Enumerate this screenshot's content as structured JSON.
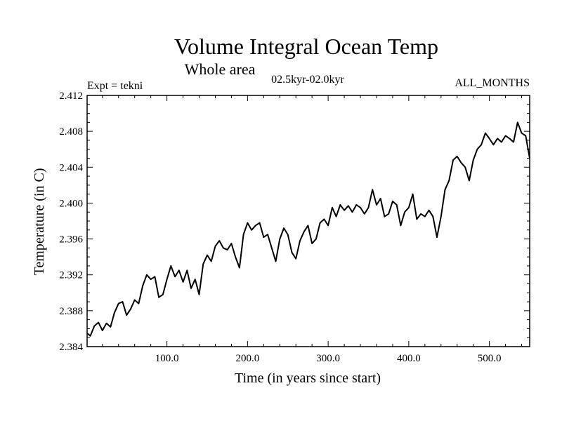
{
  "chart_data": {
    "type": "line",
    "title": "Volume Integral Ocean Temp",
    "subtitle": "Whole area",
    "period_label": "02.5kyr-02.0kyr",
    "experiment_label": "Expt = tekni",
    "months_label": "ALL_MONTHS",
    "xlabel": "Time (in years since start)",
    "ylabel": "Temperature (in C)",
    "xlim": [
      1,
      550
    ],
    "ylim": [
      2.384,
      2.412
    ],
    "x_ticks": [
      100,
      200,
      300,
      400,
      500
    ],
    "x_tick_labels": [
      "100.0",
      "200.0",
      "300.0",
      "400.0",
      "500.0"
    ],
    "y_ticks": [
      2.384,
      2.388,
      2.392,
      2.396,
      2.4,
      2.404,
      2.408,
      2.412
    ],
    "y_tick_labels": [
      "2.384",
      "2.388",
      "2.392",
      "2.396",
      "2.400",
      "2.404",
      "2.408",
      "2.412"
    ],
    "series": [
      {
        "name": "Volume integral ocean temperature",
        "color": "#000000",
        "x": [
          1,
          5,
          10,
          15,
          20,
          25,
          30,
          35,
          40,
          45,
          50,
          55,
          60,
          65,
          70,
          75,
          80,
          85,
          90,
          95,
          100,
          105,
          110,
          115,
          120,
          125,
          130,
          135,
          140,
          145,
          150,
          155,
          160,
          165,
          170,
          175,
          180,
          185,
          190,
          195,
          200,
          205,
          210,
          215,
          220,
          225,
          230,
          235,
          240,
          245,
          250,
          255,
          260,
          265,
          270,
          275,
          280,
          285,
          290,
          295,
          300,
          305,
          310,
          315,
          320,
          325,
          330,
          335,
          340,
          345,
          350,
          355,
          360,
          365,
          370,
          375,
          380,
          385,
          390,
          395,
          400,
          405,
          410,
          415,
          420,
          425,
          430,
          435,
          440,
          445,
          450,
          455,
          460,
          465,
          470,
          475,
          480,
          485,
          490,
          495,
          500,
          505,
          510,
          515,
          520,
          525,
          530,
          535,
          540,
          545,
          550
        ],
        "values": [
          2.3855,
          2.3852,
          2.3863,
          2.3867,
          2.3858,
          2.3866,
          2.3862,
          2.3878,
          2.3888,
          2.389,
          2.3875,
          2.3882,
          2.3892,
          2.3888,
          2.3908,
          2.392,
          2.3915,
          2.3918,
          2.3895,
          2.3898,
          2.3915,
          2.393,
          2.3918,
          2.3925,
          2.3912,
          2.3925,
          2.3905,
          2.3915,
          2.3898,
          2.3932,
          2.3942,
          2.3935,
          2.3952,
          2.3958,
          2.395,
          2.3948,
          2.3955,
          2.394,
          2.3928,
          2.3965,
          2.3978,
          2.397,
          2.3975,
          2.3978,
          2.3962,
          2.3965,
          2.395,
          2.3935,
          2.396,
          2.3972,
          2.3965,
          2.3945,
          2.3938,
          2.3958,
          2.3968,
          2.3975,
          2.3955,
          2.396,
          2.3978,
          2.3982,
          2.3975,
          2.3995,
          2.3985,
          2.3998,
          2.3992,
          2.3997,
          2.399,
          2.3998,
          2.3995,
          2.3988,
          2.3995,
          2.4015,
          2.3998,
          2.4005,
          2.3985,
          2.3988,
          2.4002,
          2.3998,
          2.3975,
          2.399,
          2.3995,
          2.401,
          2.3982,
          2.3988,
          2.3985,
          2.3992,
          2.3985,
          2.3962,
          2.3985,
          2.4015,
          2.4025,
          2.4048,
          2.4052,
          2.4045,
          2.404,
          2.4025,
          2.4048,
          2.406,
          2.4065,
          2.4078,
          2.4072,
          2.4065,
          2.4072,
          2.4068,
          2.4075,
          2.4072,
          2.4068,
          2.409,
          2.4078,
          2.4075,
          2.405
        ]
      }
    ]
  }
}
